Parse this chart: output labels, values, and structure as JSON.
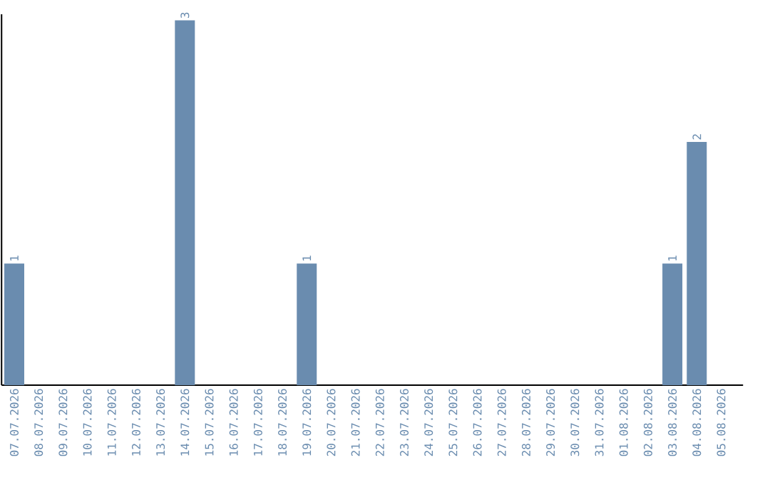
{
  "chart_data": {
    "type": "bar",
    "categories": [
      "07.07.2026",
      "08.07.2026",
      "09.07.2026",
      "10.07.2026",
      "11.07.2026",
      "12.07.2026",
      "13.07.2026",
      "14.07.2026",
      "15.07.2026",
      "16.07.2026",
      "17.07.2026",
      "18.07.2026",
      "19.07.2026",
      "20.07.2026",
      "21.07.2026",
      "22.07.2026",
      "23.07.2026",
      "24.07.2026",
      "25.07.2026",
      "26.07.2026",
      "27.07.2026",
      "28.07.2026",
      "29.07.2026",
      "30.07.2026",
      "31.07.2026",
      "01.08.2026",
      "02.08.2026",
      "03.08.2026",
      "04.08.2026",
      "05.08.2026"
    ],
    "values": [
      1,
      0,
      0,
      0,
      0,
      0,
      0,
      3,
      0,
      0,
      0,
      0,
      1,
      0,
      0,
      0,
      0,
      0,
      0,
      0,
      0,
      0,
      0,
      0,
      0,
      0,
      0,
      1,
      2,
      0
    ],
    "value_labels": [
      "1",
      null,
      null,
      null,
      null,
      null,
      null,
      "3",
      null,
      null,
      null,
      null,
      "1",
      null,
      null,
      null,
      null,
      null,
      null,
      null,
      null,
      null,
      null,
      null,
      null,
      null,
      null,
      "1",
      "2",
      null
    ],
    "color": "#6a8caf",
    "ylim": [
      0,
      3.05
    ],
    "tick_labels": "x"
  }
}
